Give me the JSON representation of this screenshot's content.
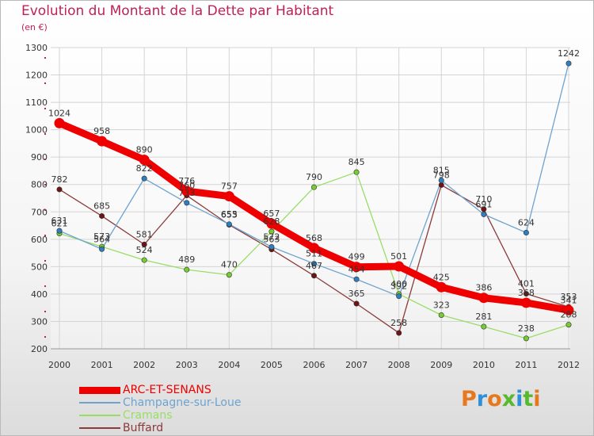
{
  "page": {
    "title": "Evolution du Montant de la Dette par Habitant",
    "subtitle": "(en €)"
  },
  "logo": {
    "letters": [
      "P",
      "r",
      "o",
      "x",
      "i",
      "t",
      "i"
    ],
    "colors": [
      "#e8781e",
      "#2f8fd8",
      "#e8781e",
      "#58b82e",
      "#2f8fd8",
      "#58b82e",
      "#e8781e"
    ]
  },
  "chart_data": {
    "type": "line",
    "title": "Evolution du Montant de la Dette par Habitant",
    "ylabel": "(en €)",
    "xlabel": "",
    "categories": [
      "2000",
      "2001",
      "2002",
      "2003",
      "2004",
      "2005",
      "2006",
      "2007",
      "2008",
      "2009",
      "2010",
      "2011",
      "2012"
    ],
    "ylim": [
      200,
      1300
    ],
    "yticks": [
      200,
      300,
      400,
      500,
      600,
      700,
      800,
      900,
      1000,
      1100,
      1200,
      1300
    ],
    "grid": true,
    "legend_position": "bottom-left",
    "series": [
      {
        "name": "ARC-ET-SENANS",
        "color": "#ee0000",
        "marker": "#ee0000",
        "width": 9,
        "values": [
          1024,
          958,
          890,
          776,
          757,
          657,
          568,
          499,
          501,
          425,
          386,
          368,
          341
        ]
      },
      {
        "name": "Champagne-sur-Loue",
        "color": "#6ea3cf",
        "marker": "#2f7fc0",
        "width": 1.3,
        "values": [
          631,
          564,
          822,
          733,
          655,
          572,
          511,
          454,
          392,
          815,
          691,
          624,
          1242
        ]
      },
      {
        "name": "Cramans",
        "color": "#99dd66",
        "marker": "#77cc33",
        "width": 1.3,
        "values": [
          621,
          573,
          524,
          489,
          470,
          628,
          790,
          845,
          400,
          323,
          281,
          238,
          288
        ]
      },
      {
        "name": "Buffard",
        "color": "#8b3a3a",
        "marker": "#6e1414",
        "width": 1.3,
        "values": [
          782,
          685,
          581,
          760,
          653,
          563,
          467,
          365,
          258,
          798,
          710,
          401,
          353
        ]
      }
    ]
  }
}
